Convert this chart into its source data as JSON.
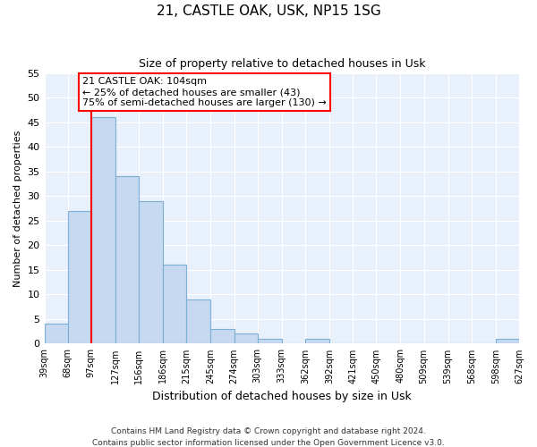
{
  "title": "21, CASTLE OAK, USK, NP15 1SG",
  "subtitle": "Size of property relative to detached houses in Usk",
  "xlabel": "Distribution of detached houses by size in Usk",
  "ylabel": "Number of detached properties",
  "bar_color": "#c6d9f0",
  "bar_edge_color": "#7bafd4",
  "grid_color": "#c6d9f0",
  "bg_color": "#e8f0fb",
  "bins": [
    39,
    68,
    97,
    127,
    156,
    186,
    215,
    245,
    274,
    303,
    333,
    362,
    392,
    421,
    450,
    480,
    509,
    539,
    568,
    598,
    627
  ],
  "counts": [
    4,
    27,
    46,
    34,
    29,
    16,
    9,
    3,
    2,
    1,
    0,
    1,
    0,
    0,
    0,
    0,
    0,
    0,
    0,
    1
  ],
  "tick_labels": [
    "39sqm",
    "68sqm",
    "97sqm",
    "127sqm",
    "156sqm",
    "186sqm",
    "215sqm",
    "245sqm",
    "274sqm",
    "303sqm",
    "333sqm",
    "362sqm",
    "392sqm",
    "421sqm",
    "450sqm",
    "480sqm",
    "509sqm",
    "539sqm",
    "568sqm",
    "598sqm",
    "627sqm"
  ],
  "property_label": "21 CASTLE OAK: 104sqm",
  "annotation_line1": "← 25% of detached houses are smaller (43)",
  "annotation_line2": "75% of semi-detached houses are larger (130) →",
  "red_line_x": 97,
  "ylim": [
    0,
    55
  ],
  "yticks": [
    0,
    5,
    10,
    15,
    20,
    25,
    30,
    35,
    40,
    45,
    50,
    55
  ],
  "footnote1": "Contains HM Land Registry data © Crown copyright and database right 2024.",
  "footnote2": "Contains public sector information licensed under the Open Government Licence v3.0."
}
